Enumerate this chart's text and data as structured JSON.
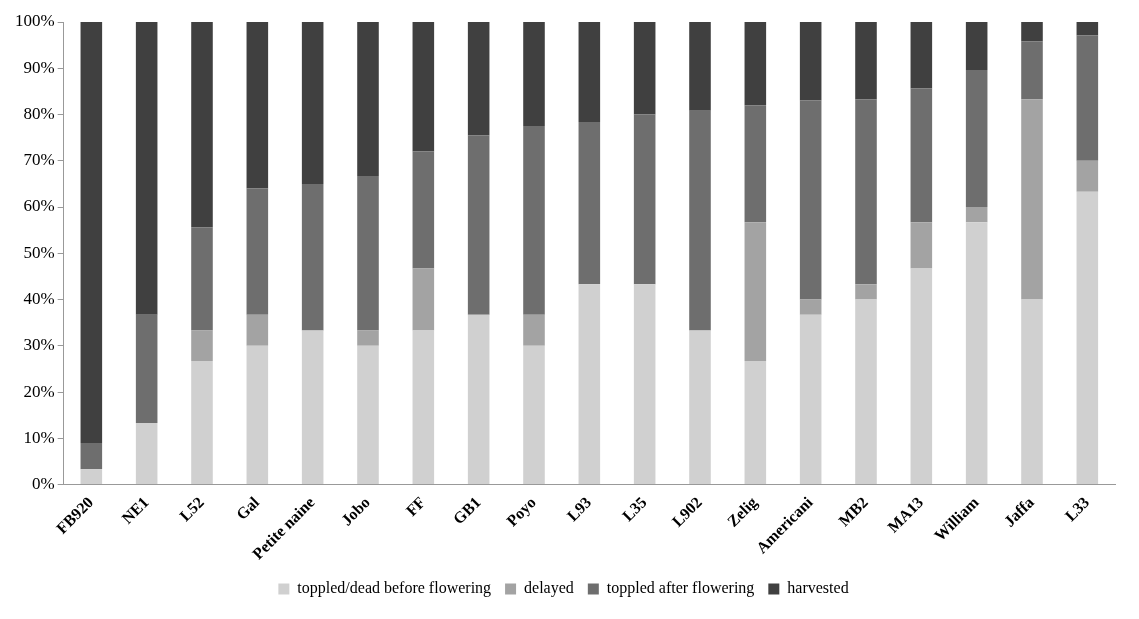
{
  "chart_data": {
    "type": "bar",
    "stacked": true,
    "categories": [
      "FB920",
      "NE1",
      "L52",
      "Gal",
      "Petite naine",
      "Jobo",
      "FF",
      "GB1",
      "Poyo",
      "L93",
      "L35",
      "L902",
      "Zelig",
      "Americani",
      "MB2",
      "MA13",
      "William",
      "Jaffa",
      "L33"
    ],
    "series": [
      {
        "name": "toppled/dead before flowering",
        "color": "#d0d0d0",
        "values": [
          3.3,
          13.3,
          26.7,
          30,
          33.3,
          30,
          33.3,
          36.7,
          30,
          43.3,
          43.3,
          33.3,
          26.7,
          36.7,
          40,
          46.7,
          56.7,
          40,
          63.3
        ]
      },
      {
        "name": "delayed",
        "color": "#a3a3a3",
        "values": [
          0,
          0,
          6.6,
          6.7,
          0,
          3.3,
          13.4,
          0,
          6.7,
          0,
          0,
          0,
          30,
          3.3,
          3.3,
          10,
          3.3,
          43.3,
          6.7
        ]
      },
      {
        "name": "toppled after flowering",
        "color": "#6e6e6e",
        "values": [
          5.7,
          23.4,
          22.3,
          27.3,
          31.7,
          33.4,
          25.3,
          38.8,
          40.8,
          35.1,
          36.7,
          47.5,
          25.3,
          43.1,
          40,
          28.9,
          29.6,
          12.5,
          27.1
        ]
      },
      {
        "name": "harvested",
        "color": "#404040",
        "values": [
          91,
          63.3,
          44.4,
          36,
          35,
          33.3,
          28,
          24.5,
          22.5,
          21.6,
          20,
          19.2,
          18,
          16.9,
          16.7,
          14.4,
          10.4,
          4.2,
          2.9
        ]
      }
    ],
    "ylim": [
      0,
      100
    ],
    "yticks": [
      {
        "value": 0,
        "label": "0%"
      },
      {
        "value": 10,
        "label": "10%"
      },
      {
        "value": 20,
        "label": "20%"
      },
      {
        "value": 30,
        "label": "30%"
      },
      {
        "value": 40,
        "label": "40%"
      },
      {
        "value": 50,
        "label": "50%"
      },
      {
        "value": 60,
        "label": "60%"
      },
      {
        "value": 70,
        "label": "70%"
      },
      {
        "value": 80,
        "label": "80%"
      },
      {
        "value": 90,
        "label": "90%"
      },
      {
        "value": 100,
        "label": "100%"
      }
    ],
    "grid": false,
    "legend": "bottom"
  }
}
